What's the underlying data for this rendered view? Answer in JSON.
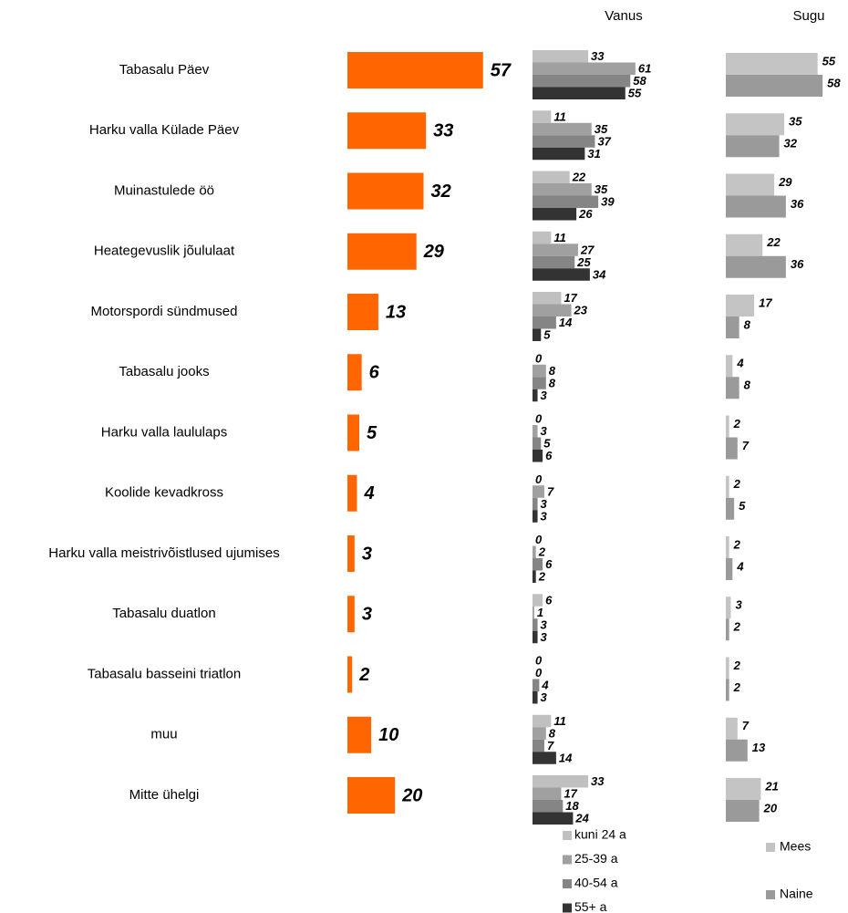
{
  "chart_data": [
    {
      "type": "bar",
      "categories": [
        "Tabasalu Päev",
        "Harku valla Külade Päev",
        "Muinastulede öö",
        "Heategevuslik jõululaat",
        "Motorspordi sündmused",
        "Tabasalu jooks",
        "Harku valla laululaps",
        "Koolide kevadkross",
        "Harku valla meistrivõistlused ujumises",
        "Tabasalu duatlon",
        "Tabasalu basseini triatlon",
        "muu",
        "Mitte ühelgi"
      ],
      "values": [
        57,
        33,
        32,
        29,
        13,
        6,
        5,
        4,
        3,
        3,
        2,
        10,
        20
      ],
      "color": "#ff6600"
    },
    {
      "type": "bar",
      "title": "Vanus",
      "series": [
        {
          "name": "kuni 24 a",
          "color": "#c0c0c0",
          "values": [
            33,
            11,
            22,
            11,
            17,
            0,
            0,
            0,
            0,
            6,
            0,
            11,
            33
          ]
        },
        {
          "name": "25-39 a",
          "color": "#a0a0a0",
          "values": [
            61,
            35,
            35,
            27,
            23,
            8,
            3,
            7,
            2,
            1,
            0,
            8,
            17
          ]
        },
        {
          "name": "40-54 a",
          "color": "#858585",
          "values": [
            58,
            37,
            39,
            25,
            14,
            8,
            5,
            3,
            6,
            3,
            4,
            7,
            18
          ]
        },
        {
          "name": "55+ a",
          "color": "#333333",
          "values": [
            55,
            31,
            26,
            34,
            5,
            3,
            6,
            3,
            2,
            3,
            3,
            14,
            24
          ]
        }
      ]
    },
    {
      "type": "bar",
      "title": "Sugu",
      "series": [
        {
          "name": "Mees",
          "color": "#c4c4c4",
          "values": [
            55,
            35,
            29,
            22,
            17,
            4,
            2,
            2,
            2,
            3,
            2,
            7,
            21
          ]
        },
        {
          "name": "Naine",
          "color": "#9a9a9a",
          "values": [
            58,
            32,
            36,
            36,
            8,
            8,
            7,
            5,
            4,
            2,
            2,
            13,
            20
          ]
        }
      ]
    }
  ]
}
